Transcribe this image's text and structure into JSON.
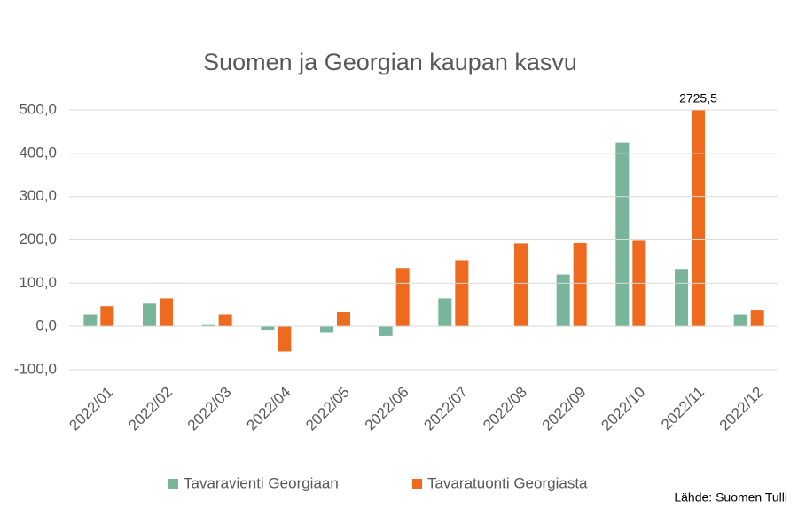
{
  "chart_data": {
    "type": "bar",
    "title": "Suomen ja Georgian kaupan kasvu",
    "source": "Lähde: Suomen Tulli",
    "categories": [
      "2022/01",
      "2022/02",
      "2022/03",
      "2022/04",
      "2022/05",
      "2022/06",
      "2022/07",
      "2022/08",
      "2022/09",
      "2022/10",
      "2022/11",
      "2022/12"
    ],
    "series": [
      {
        "name": "Tavaravienti Georgiaan",
        "color": "#78b59a",
        "values": [
          28,
          53,
          5,
          -8,
          -15,
          -22,
          65,
          null,
          120,
          425,
          133,
          28
        ]
      },
      {
        "name": "Tavaratuonti Georgiasta",
        "color": "#ee6a1e",
        "values": [
          47,
          65,
          28,
          -58,
          33,
          135,
          153,
          192,
          193,
          198,
          2725.5,
          37
        ],
        "value_labels": [
          null,
          null,
          null,
          null,
          null,
          null,
          null,
          null,
          null,
          null,
          "2725,5",
          null
        ]
      }
    ],
    "ylim": [
      -100,
      500
    ],
    "yticks": [
      {
        "value": -100,
        "label": "-100,0"
      },
      {
        "value": 0,
        "label": "0,0"
      },
      {
        "value": 100,
        "label": "100,0"
      },
      {
        "value": 200,
        "label": "200,0"
      },
      {
        "value": 300,
        "label": "300,0"
      },
      {
        "value": 400,
        "label": "400,0"
      },
      {
        "value": 500,
        "label": "500,0"
      }
    ],
    "grid": true,
    "legend": "bottom"
  }
}
